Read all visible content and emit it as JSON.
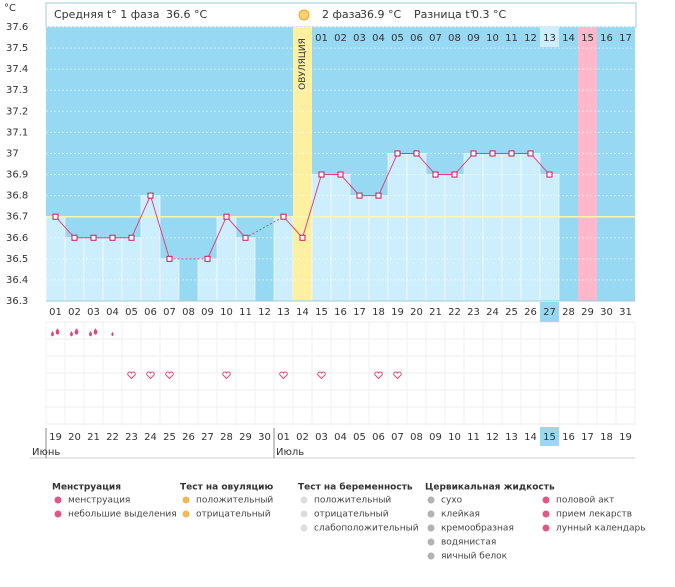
{
  "header": {
    "phase1_label": "Средняя t° 1 фаза",
    "phase1_value": "36.6 °C",
    "phase2_label": "2 фаза",
    "phase2_value": "36.9 °C",
    "diff_label": "Разница t°",
    "diff_value": "0.3 °C"
  },
  "chart_data": {
    "type": "line",
    "y_label": "°C",
    "ovulation_label": "ОВУЛЯЦИЯ",
    "categories": [
      "01",
      "02",
      "03",
      "04",
      "05",
      "06",
      "07",
      "08",
      "09",
      "10",
      "11",
      "12",
      "13",
      "14",
      "15",
      "16",
      "17",
      "18",
      "19",
      "20",
      "21",
      "22",
      "23",
      "24",
      "25",
      "26",
      "27",
      "28",
      "29",
      "30",
      "31"
    ],
    "values": [
      36.7,
      36.6,
      36.6,
      36.6,
      36.6,
      36.8,
      36.5,
      null,
      36.5,
      36.7,
      36.6,
      null,
      36.7,
      36.6,
      36.9,
      36.9,
      36.8,
      36.8,
      37,
      37,
      36.9,
      36.9,
      37,
      37,
      37,
      37,
      36.9,
      null,
      null,
      null,
      null
    ],
    "color": "#e0457a",
    "coverline": 36.7,
    "ylim": [
      36.3,
      37.6
    ],
    "yticks": [
      36.3,
      36.4,
      36.5,
      36.6,
      36.7,
      36.8,
      36.9,
      37,
      37.1,
      37.2,
      37.3,
      37.4,
      37.5,
      37.6
    ],
    "phase2_days": [
      "01",
      "02",
      "03",
      "04",
      "05",
      "06",
      "07",
      "08",
      "09",
      "10",
      "11",
      "12",
      "13",
      "14",
      "15",
      "16",
      "17"
    ],
    "ovulation_day": "14",
    "ovulation_color": "#fdf0a0",
    "period_day": "29",
    "period_color": "#ffb8cb",
    "today": "27",
    "menstruation": [
      2,
      2,
      2,
      1,
      null,
      null,
      null,
      null,
      null,
      null,
      null,
      null,
      null,
      null,
      null,
      null,
      null,
      null,
      null,
      null,
      null,
      null,
      null,
      null,
      null,
      null,
      null,
      null,
      null,
      null,
      null
    ],
    "intercourse_days": [
      "05",
      "06",
      "07",
      "10",
      "13",
      "15",
      "18",
      "19"
    ],
    "dates": [
      "19",
      "20",
      "21",
      "22",
      "23",
      "24",
      "25",
      "26",
      "27",
      "28",
      "29",
      "30",
      "01",
      "02",
      "03",
      "04",
      "05",
      "06",
      "07",
      "08",
      "09",
      "10",
      "11",
      "12",
      "13",
      "14",
      "15",
      "16",
      "17",
      "18",
      "19"
    ],
    "weekends": [
      3,
      4,
      10,
      11,
      18,
      19,
      25,
      26
    ],
    "months": [
      {
        "label": "Июнь",
        "start": 0
      },
      {
        "label": "Июль",
        "start": 12
      }
    ]
  },
  "legend": [
    {
      "title": "Менструация",
      "items": [
        "менструация",
        "небольшие выделения"
      ]
    },
    {
      "title": "Тест на овуляцию",
      "items": [
        "положительный",
        "отрицательный"
      ]
    },
    {
      "title": "Тест на беременность",
      "items": [
        "положительный",
        "отрицательный",
        "слабоположительный"
      ]
    },
    {
      "title": "Цервикальная жидкость",
      "items": [
        "сухо",
        "клейкая",
        "кремообразная",
        "водянистая",
        "яичный белок"
      ]
    },
    {
      "items": [
        "половой акт",
        "прием лекарств",
        "лунный календарь"
      ]
    }
  ]
}
